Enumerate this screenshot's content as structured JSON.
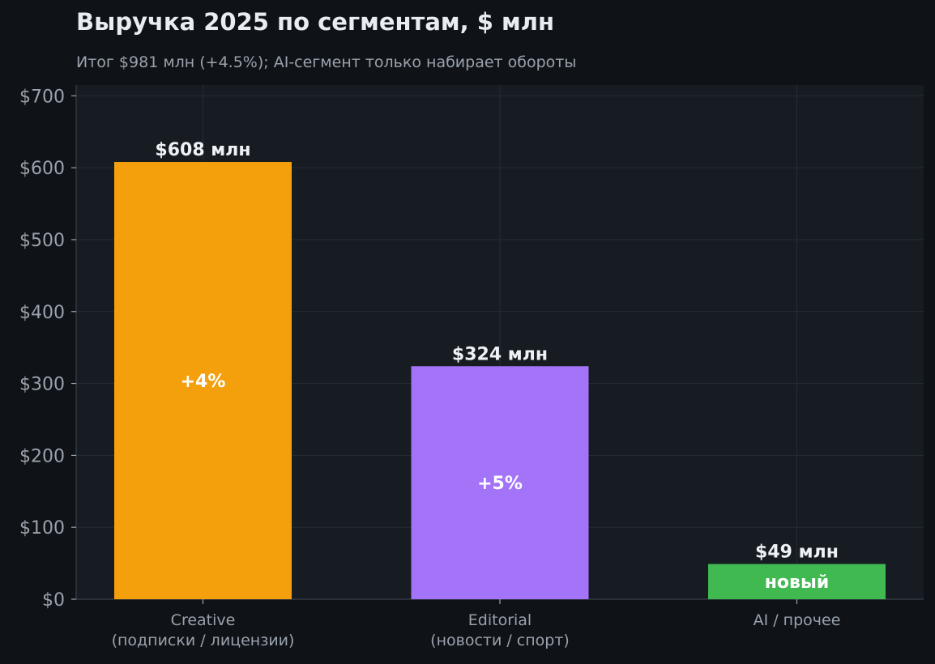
{
  "chart_data": {
    "type": "bar",
    "title": "Выручка 2025 по сегментам, $ млн",
    "subtitle": "Итог $981 млн (+4.5%); AI-сегмент только набирает обороты",
    "xlabel": "",
    "ylabel": "",
    "ylim": [
      0,
      715
    ],
    "yticks": [
      0,
      100,
      200,
      300,
      400,
      500,
      600,
      700
    ],
    "ytick_labels": [
      "$0",
      "$100",
      "$200",
      "$300",
      "$400",
      "$500",
      "$600",
      "$700"
    ],
    "grid": true,
    "categories": [
      [
        "Creative",
        "(подписки / лицензии)"
      ],
      [
        "Editorial",
        "(новости / спорт)"
      ],
      [
        "AI / прочее"
      ]
    ],
    "values": [
      608,
      324,
      49
    ],
    "value_labels": [
      "$608 млн",
      "$324 млн",
      "$49 млн"
    ],
    "inner_labels": [
      "+4%",
      "+5%",
      "новый"
    ],
    "colors": [
      "#f4a00d",
      "#a374f8",
      "#3fb950"
    ]
  },
  "colors": {
    "background": "#0f1317",
    "plot_background": "#171b22",
    "grid": "#262c35",
    "axis": "#3a414b"
  }
}
